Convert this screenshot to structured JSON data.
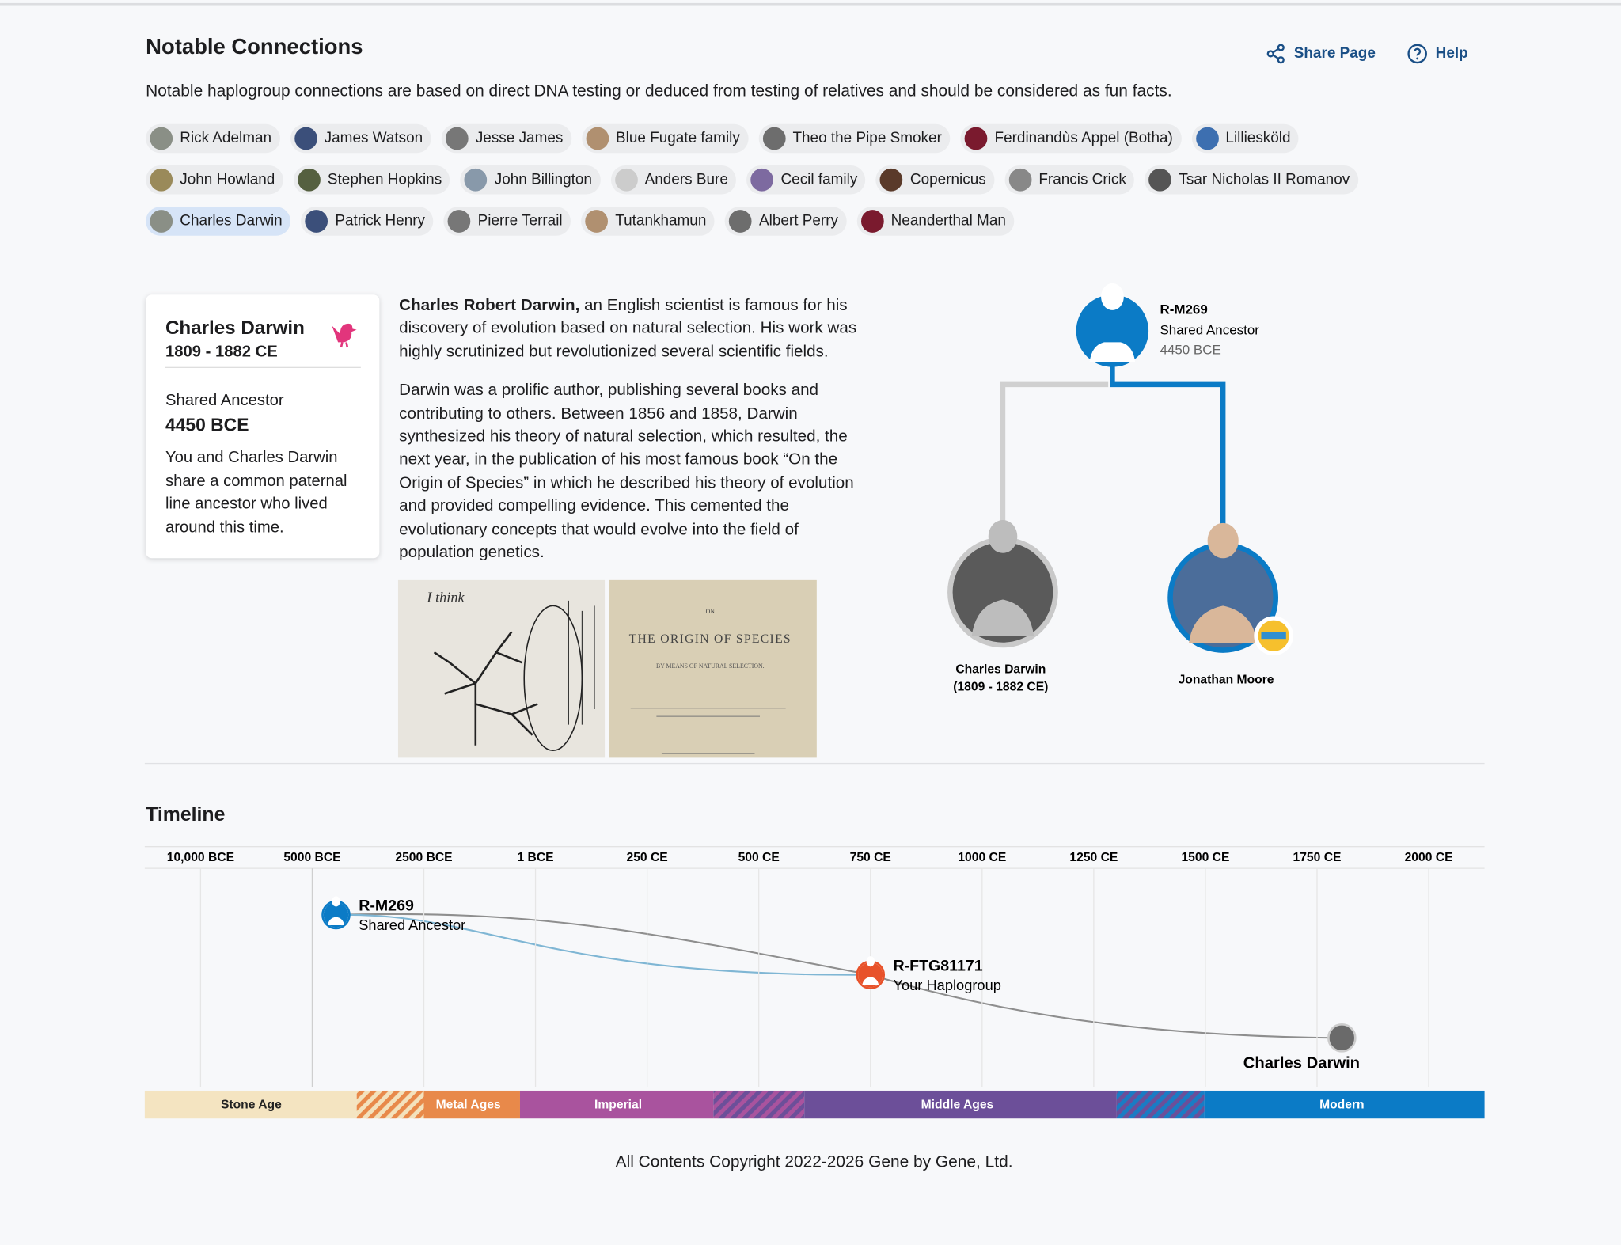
{
  "header": {
    "title": "Notable Connections",
    "actions": [
      "Share Page",
      "Help"
    ],
    "description": "Notable haplogroup connections are based on direct DNA testing or deduced from testing of relatives and should be considered as fun facts."
  },
  "connections": [
    "Rick Adelman",
    "James Watson",
    "Jesse James",
    "Blue Fugate family",
    "Theo the Pipe Smoker",
    "Ferdinandùs Appel (Botha)",
    "Lilliesköld",
    "John Howland",
    "Stephen Hopkins",
    "John Billington",
    "Anders Bure",
    "Cecil family",
    "Copernicus",
    "Francis Crick",
    "Tsar Nicholas II Romanov",
    "Charles Darwin",
    "Patrick Henry",
    "Pierre Terrail",
    "Tutankhamun",
    "Albert Perry",
    "Neanderthal Man"
  ],
  "card": {
    "name": "Charles Darwin",
    "dates": "1809 - 1882 CE",
    "label": "Shared Ancestor",
    "value": "4450 BCE",
    "text": "You and Charles Darwin share a common paternal line ancestor who lived around this time."
  },
  "bio": {
    "lead": "Charles Robert Darwin,",
    "p1": " an English scientist is famous for his discovery of evolution based on natural selection. His work was highly scrutinized but revolutionized several scientific fields.",
    "p2": "Darwin was a prolific author, publishing several books and contributing to others. Between 1856 and 1858, Darwin synthesized his theory of natural selection, which resulted, the next year, in the publication of his most famous book “On the Origin of Species” in which he described his theory of evolution and provided compelling evidence. This cemented the evolutionary concepts that would evolve into the field of population genetics."
  },
  "images": {
    "notebook": "I think",
    "book": [
      "ON",
      "THE ORIGIN OF SPECIES",
      "BY MEANS OF NATURAL SELECTION."
    ]
  },
  "tree": {
    "root": {
      "haplogroup": "R-M269",
      "label": "Shared Ancestor",
      "date": "4450 BCE"
    },
    "left": {
      "name": "Charles Darwin",
      "dates": "(1809 - 1882 CE)"
    },
    "right": {
      "name": "Jonathan Moore"
    }
  },
  "timeline": {
    "title": "Timeline",
    "ticks": [
      "10,000 BCE",
      "5000 BCE",
      "2500 BCE",
      "1 BCE",
      "250 CE",
      "500 CE",
      "750 CE",
      "1000 CE",
      "1250 CE",
      "1500 CE",
      "1750 CE",
      "2000 CE"
    ],
    "nodes": [
      {
        "label": "R-M269",
        "sub": "Shared Ancestor"
      },
      {
        "label": "R-FTG81171",
        "sub": "Your Haplogroup"
      },
      {
        "label": "Charles Darwin"
      }
    ],
    "eras": [
      "Stone Age",
      "Metal Ages",
      "Imperial",
      "Middle Ages",
      "Modern"
    ]
  },
  "footer": "All Contents Copyright 2022-2026 Gene by Gene, Ltd."
}
